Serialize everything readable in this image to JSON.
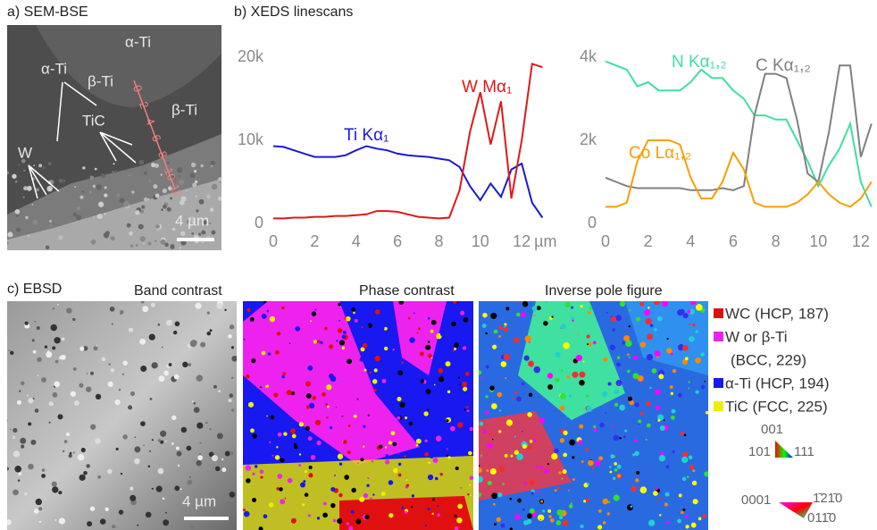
{
  "panels": {
    "a": {
      "label": "a) SEM-BSE",
      "annotations": [
        "α-Ti",
        "α-Ti",
        "β-Ti",
        "β-Ti",
        "TiC",
        "W"
      ],
      "scan_ticks": [
        "0",
        "2",
        "4",
        "6",
        "8",
        "10",
        "12"
      ],
      "scale_bar": "4 µm"
    },
    "b": {
      "label": "b) XEDS linescans"
    },
    "c": {
      "label": "c) EBSD",
      "maps": [
        "Band contrast",
        "Phase contrast",
        "Inverse pole figure"
      ],
      "scale_bar": "4 µm",
      "legend": [
        "WC (HCP, 187)",
        "W or β-Ti",
        "(BCC, 229)",
        "α-Ti (HCP, 194)",
        "TiC (FCC, 225)"
      ],
      "ipf_cubic": [
        "001",
        "101",
        "111"
      ],
      "ipf_hexagonal": [
        "0001",
        "1̄21̄0",
        "011̄0"
      ]
    }
  },
  "chart_data": [
    {
      "type": "line",
      "xlabel": "µm",
      "xlim": [
        0,
        13.2
      ],
      "xticks": [
        0,
        2,
        4,
        6,
        8,
        10,
        12
      ],
      "ylim": [
        0,
        20000
      ],
      "yticks": [
        0,
        {
          "value": 10000,
          "label": "10k"
        },
        {
          "value": 20000,
          "label": "20k"
        }
      ],
      "x": [
        0,
        0.5,
        1,
        1.5,
        2,
        2.5,
        3,
        3.5,
        4,
        4.5,
        5,
        5.5,
        6,
        6.5,
        7,
        7.5,
        8,
        8.5,
        9,
        9.5,
        10,
        10.5,
        11,
        11.5,
        12,
        12.5,
        13
      ],
      "series": [
        {
          "name": "Ti Kα₁",
          "color": "#1a1ad6",
          "values": [
            9300,
            9200,
            8800,
            8400,
            8000,
            8000,
            8000,
            8200,
            8800,
            9300,
            9000,
            8800,
            8400,
            8200,
            8100,
            8000,
            7800,
            7600,
            6800,
            4500,
            2800,
            4800,
            3200,
            6500,
            7200,
            2500,
            700
          ]
        },
        {
          "name": "W Mα₁",
          "color": "#e01818",
          "values": [
            600,
            600,
            700,
            700,
            800,
            800,
            900,
            900,
            1000,
            1100,
            1500,
            1500,
            1400,
            1100,
            800,
            700,
            600,
            700,
            4000,
            11000,
            15800,
            9500,
            14700,
            3000,
            10000,
            19200,
            18800
          ]
        }
      ]
    },
    {
      "type": "line",
      "xlim": [
        0,
        12.7
      ],
      "xticks": [
        0,
        2,
        4,
        6,
        8,
        10,
        12
      ],
      "ylim": [
        0,
        4000
      ],
      "yticks": [
        0,
        {
          "value": 2000,
          "label": "2k"
        },
        {
          "value": 4000,
          "label": "4k"
        }
      ],
      "x": [
        0,
        0.5,
        1,
        1.5,
        2,
        2.5,
        3,
        3.5,
        4,
        4.5,
        5,
        5.5,
        6,
        6.5,
        7,
        7.5,
        8,
        8.5,
        9,
        9.5,
        10,
        10.5,
        11,
        11.5,
        12,
        12.5
      ],
      "series": [
        {
          "name": "N Kα₁,₂",
          "color": "#3fdf9e",
          "values": [
            3900,
            3800,
            3700,
            3300,
            3400,
            3200,
            3200,
            3200,
            3400,
            3700,
            3500,
            3500,
            3200,
            3000,
            2600,
            2600,
            2500,
            2500,
            2000,
            1500,
            900,
            1400,
            1800,
            2400,
            1000,
            400
          ]
        },
        {
          "name": "C Kα₁,₂",
          "color": "#808080",
          "values": [
            1100,
            1000,
            900,
            850,
            850,
            850,
            850,
            850,
            800,
            800,
            800,
            850,
            800,
            900,
            2600,
            3600,
            3600,
            3500,
            2500,
            1200,
            1000,
            2200,
            3800,
            3800,
            1600,
            2400
          ]
        },
        {
          "name": "Co Lα₁,₂",
          "color": "#f5a000",
          "values": [
            400,
            400,
            500,
            1500,
            2000,
            2000,
            2000,
            1900,
            1100,
            600,
            600,
            1000,
            1700,
            1300,
            500,
            400,
            400,
            400,
            500,
            700,
            1000,
            700,
            500,
            400,
            600,
            1000
          ]
        }
      ]
    }
  ]
}
